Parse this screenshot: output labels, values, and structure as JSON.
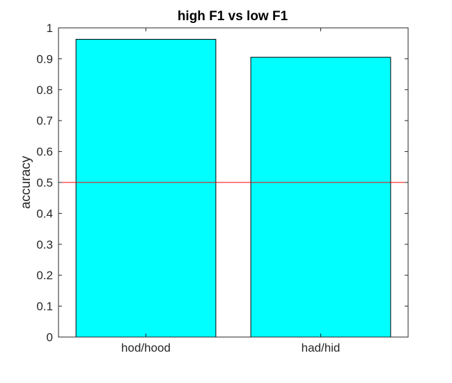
{
  "chart_data": {
    "type": "bar",
    "title": "high F1 vs low F1",
    "xlabel": "",
    "ylabel": "accuracy",
    "categories": [
      "hod/hood",
      "had/hid"
    ],
    "values": [
      0.963,
      0.905
    ],
    "ylim": [
      0,
      1
    ],
    "yticks": [
      "0",
      "0.1",
      "0.2",
      "0.3",
      "0.4",
      "0.5",
      "0.6",
      "0.7",
      "0.8",
      "0.9",
      "1"
    ],
    "reference_line": 0.5,
    "grid": false,
    "legend": "none",
    "colors": {
      "bar_fill": "#00ffff",
      "bar_edge": "#000000",
      "reference_line": "#ff0000",
      "axes": "#262626"
    }
  }
}
